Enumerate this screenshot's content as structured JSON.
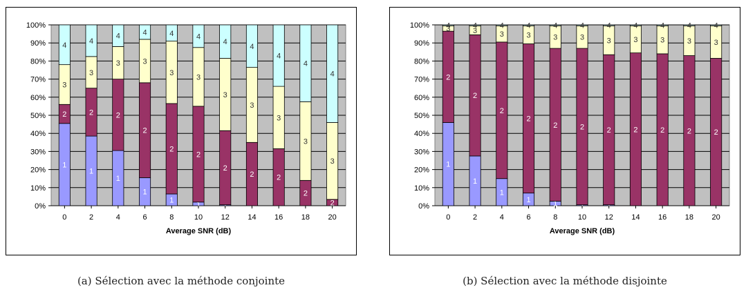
{
  "colors": {
    "seg1": "#9999ff",
    "seg2": "#993366",
    "seg3": "#ffffcc",
    "seg4": "#ccffff",
    "plot_bg": "#c0c0c0",
    "frame": "#000000"
  },
  "captions": {
    "a": "(a) Sélection avec la méthode conjointe",
    "b": "(b) Sélection avec la méthode disjointe"
  },
  "chart_data": [
    {
      "type": "bar",
      "stacked": "percent",
      "xlabel": "Average SNR (dB)",
      "ylabel": "",
      "categories": [
        "0",
        "2",
        "4",
        "6",
        "8",
        "10",
        "12",
        "14",
        "16",
        "18",
        "20"
      ],
      "yticks": [
        "0%",
        "10%",
        "20%",
        "30%",
        "40%",
        "50%",
        "60%",
        "70%",
        "80%",
        "90%",
        "100%"
      ],
      "ylim": [
        0,
        100
      ],
      "grid": true,
      "series": [
        {
          "name": "1",
          "values": [
            45.5,
            38.5,
            30.5,
            15.5,
            6.5,
            2,
            0.5,
            0,
            0,
            0,
            0
          ]
        },
        {
          "name": "2",
          "values": [
            10.5,
            26.5,
            39.5,
            52.5,
            50,
            53,
            41,
            35,
            31.5,
            14,
            3.5
          ]
        },
        {
          "name": "3",
          "values": [
            22,
            17.5,
            18,
            24,
            34.5,
            32.5,
            40,
            41.5,
            34.5,
            43.5,
            42.5
          ]
        },
        {
          "name": "4",
          "values": [
            22,
            17.5,
            12,
            8,
            9,
            12.5,
            18.5,
            23.5,
            34,
            42.5,
            54
          ]
        }
      ]
    },
    {
      "type": "bar",
      "stacked": "percent",
      "xlabel": "Average SNR (dB)",
      "ylabel": "",
      "categories": [
        "0",
        "2",
        "4",
        "6",
        "8",
        "10",
        "12",
        "14",
        "16",
        "18",
        "20"
      ],
      "yticks": [
        "0%",
        "10%",
        "20%",
        "30%",
        "40%",
        "50%",
        "60%",
        "70%",
        "80%",
        "90%",
        "100%"
      ],
      "ylim": [
        0,
        100
      ],
      "grid": true,
      "series": [
        {
          "name": "1",
          "values": [
            46,
            27.5,
            15,
            7,
            2.5,
            0.5,
            0.5,
            0,
            0,
            0,
            0
          ]
        },
        {
          "name": "2",
          "values": [
            50.5,
            67,
            75.5,
            82.5,
            84.5,
            86.5,
            83,
            84.5,
            84,
            83,
            81.5
          ]
        },
        {
          "name": "3",
          "values": [
            3,
            5,
            9,
            10,
            12.5,
            12.5,
            16,
            15,
            15.5,
            16.5,
            18
          ]
        },
        {
          "name": "4",
          "values": [
            0.5,
            0.5,
            0.5,
            0.5,
            0.5,
            0.5,
            0.5,
            0.5,
            0.5,
            0.5,
            0.5
          ]
        }
      ]
    }
  ]
}
